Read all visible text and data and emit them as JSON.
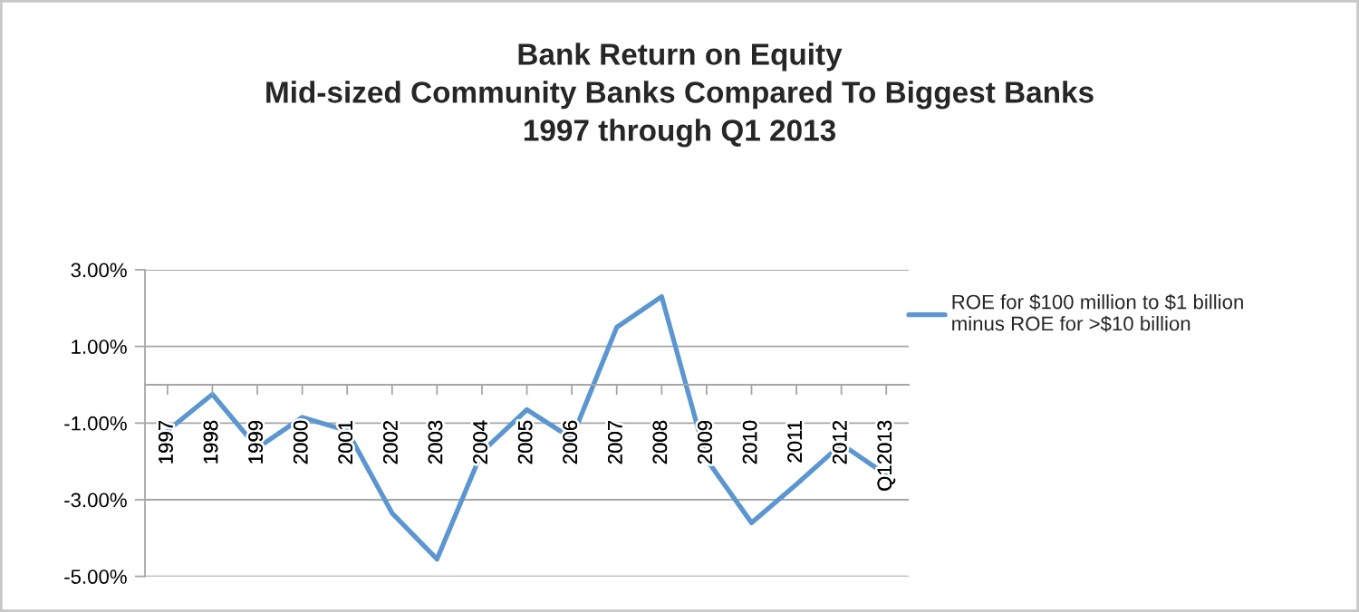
{
  "chart_data": {
    "type": "line",
    "title": "Bank Return on Equity\nMid-sized Community Banks Compared To Biggest Banks\n1997 through Q1 2013",
    "categories": [
      "1997",
      "1998",
      "1999",
      "2000",
      "2001",
      "2002",
      "2003",
      "2004",
      "2005",
      "2006",
      "2007",
      "2008",
      "2009",
      "2010",
      "2011",
      "2012",
      "Q12013"
    ],
    "series": [
      {
        "name": "ROE for $100 million to $1 billion\nminus ROE for >$10 billion",
        "color": "#5b96d1",
        "values": [
          -1.2,
          -0.25,
          -1.65,
          -0.85,
          -1.2,
          -3.35,
          -4.55,
          -1.75,
          -0.65,
          -1.4,
          1.5,
          2.3,
          -1.95,
          -3.6,
          -2.6,
          -1.55,
          -2.35
        ]
      }
    ],
    "ylim": [
      -5,
      3
    ],
    "yticks": [
      {
        "value": -5,
        "label": "-5.00%"
      },
      {
        "value": -3,
        "label": "-3.00%"
      },
      {
        "value": -1,
        "label": "-1.00%"
      },
      {
        "value": 1,
        "label": "1.00%"
      },
      {
        "value": 3,
        "label": "3.00%"
      }
    ],
    "grid": "y",
    "legend": "right",
    "line_style": "solid"
  }
}
